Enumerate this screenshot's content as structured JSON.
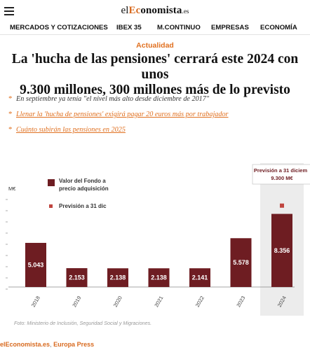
{
  "header": {
    "logo_prefix": "el",
    "logo_accent": "Ec",
    "logo_rest": "onomista",
    "logo_suffix": ".es",
    "menu_icon": "hamburger-menu-icon"
  },
  "nav": {
    "items": [
      "MERCADOS Y COTIZACIONES",
      "IBEX 35",
      "M.CONTINUO",
      "EMPRESAS",
      "ECONOMÍA"
    ]
  },
  "article": {
    "section": "Actualidad",
    "headline_line1": "La 'hucha de las pensiones' cerrará este 2024 con unos",
    "headline_line2": "9.300 millones, 300 millones más de lo previsto",
    "bullets": [
      {
        "text": "En septiembre ya tenía \"el nivel más alto desde diciembre de 2017\"",
        "is_link": false
      },
      {
        "text": "Llenar la 'hucha de pensiones' exigirá pagar 20 euros más por trabajador",
        "is_link": true
      },
      {
        "text": "Cuánto subirán las pensiones en 2025",
        "is_link": true
      }
    ],
    "caption": "Foto: Ministerio de Inclusión, Seguridad Social y Migraciones.",
    "source_primary": "elEconomista.es",
    "source_sep": ",",
    "source_secondary": "Europa Press"
  },
  "colors": {
    "accent": "#e07020",
    "bar": "#6e1d22",
    "highlight_bg": "#ececec"
  },
  "chart_data": {
    "type": "bar",
    "ylabel": "M€",
    "categories": [
      "2018",
      "2019",
      "2020",
      "2021",
      "2022",
      "2023",
      "2024"
    ],
    "series": [
      {
        "name": "Valor del Fondo a precio adquisición",
        "values": [
          5043,
          2153,
          2138,
          2138,
          2141,
          5578,
          8356
        ],
        "labels": [
          "5.043",
          "2.153",
          "2.138",
          "2.138",
          "2.141",
          "5.578",
          "8.356"
        ]
      }
    ],
    "forecast": {
      "name": "Previsión a 31 dic",
      "category": "2024",
      "value": 9300,
      "callout": [
        "Previsión a 31 diciem",
        "9.300 M€"
      ]
    },
    "highlight_category": "2024",
    "ylim": [
      0,
      12000
    ]
  }
}
